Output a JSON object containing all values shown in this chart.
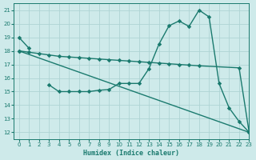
{
  "bg_color": "#ceeaea",
  "grid_color": "#aed4d4",
  "line_color": "#1a7a6e",
  "xlabel": "Humidex (Indice chaleur)",
  "xlim": [
    -0.5,
    23
  ],
  "ylim": [
    11.5,
    21.5
  ],
  "yticks": [
    12,
    13,
    14,
    15,
    16,
    17,
    18,
    19,
    20,
    21
  ],
  "xticks": [
    0,
    1,
    2,
    3,
    4,
    5,
    6,
    7,
    8,
    9,
    10,
    11,
    12,
    13,
    14,
    15,
    16,
    17,
    18,
    19,
    20,
    21,
    22,
    23
  ],
  "line1_x": [
    0,
    1
  ],
  "line1_y": [
    19.0,
    18.2
  ],
  "line2_x": [
    0,
    1,
    2,
    3,
    4,
    5,
    6,
    7,
    8,
    9,
    10,
    11,
    12,
    13,
    14,
    15,
    16,
    17,
    18,
    22,
    23
  ],
  "line2_y": [
    18.0,
    17.9,
    17.8,
    17.7,
    17.6,
    17.55,
    17.5,
    17.45,
    17.4,
    17.35,
    17.3,
    17.25,
    17.2,
    17.15,
    17.1,
    17.05,
    17.0,
    16.95,
    16.9,
    16.75,
    12.0
  ],
  "line3_x": [
    0,
    23
  ],
  "line3_y": [
    18.0,
    12.0
  ],
  "line4_x": [
    3,
    4,
    5,
    6,
    7,
    8,
    9,
    10,
    11,
    12,
    13,
    14,
    15,
    16,
    17,
    18,
    19,
    20,
    21,
    22,
    23
  ],
  "line4_y": [
    15.5,
    15.0,
    15.0,
    15.0,
    15.0,
    15.1,
    15.15,
    15.6,
    15.6,
    15.6,
    16.7,
    18.5,
    19.85,
    20.2,
    19.8,
    21.0,
    20.5,
    15.6,
    13.8,
    12.8,
    12.0
  ]
}
